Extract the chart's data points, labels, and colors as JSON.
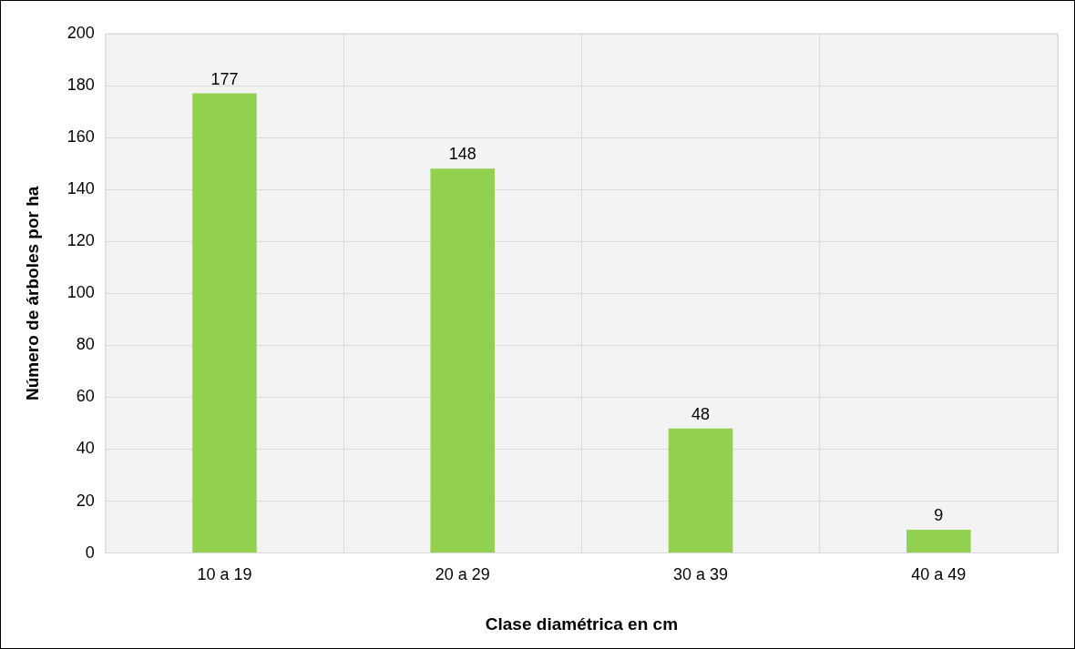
{
  "chart_data": {
    "type": "bar",
    "xlabel": "Clase diamétrica en cm",
    "ylabel": "Número de árboles por ha",
    "categories": [
      "10 a 19",
      "20 a 29",
      "30 a 39",
      "40 a 49"
    ],
    "values": [
      177,
      148,
      48,
      9
    ],
    "color": "#92d050",
    "ylim": [
      0,
      200
    ],
    "yticks": [
      0,
      20,
      40,
      60,
      80,
      100,
      120,
      140,
      160,
      180,
      200
    ],
    "grid": true,
    "data_labels": true
  }
}
